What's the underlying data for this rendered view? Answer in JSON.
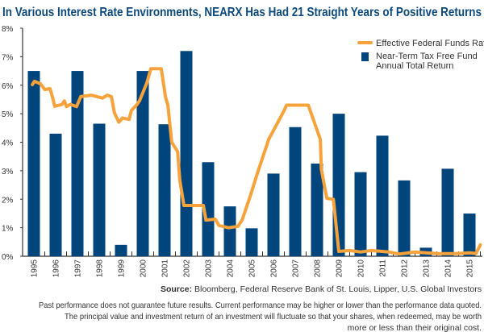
{
  "title": "In Various Interest Rate Environments, NEARX Has Had 21 Straight Years of Positive Returns",
  "source_label": "Source:",
  "source_text": "Bloomberg, Federal Reserve Bank of St. Louis, Lipper, U.S. Global Investors",
  "disclaimer": [
    "Past performance does not guarantee future results. Current performance may be higher or lower than the performance data quoted.",
    "The principal value and investment return of an investment will fluctuate so that your shares, when redeemed, may be worth",
    "more or less than their original cost."
  ],
  "colors": {
    "title": "#0d4a7c",
    "bar": "#00457c",
    "line": "#f7a23b",
    "text": "#333333"
  },
  "chart_data": {
    "type": "bar+line",
    "title": "In Various Interest Rate Environments, NEARX Has Had 21 Straight Years of Positive Returns",
    "ylim": [
      0,
      8
    ],
    "yticks": [
      "0%",
      "1%",
      "2%",
      "3%",
      "4%",
      "5%",
      "6%",
      "7%",
      "8%"
    ],
    "categories": [
      "1995",
      "1996",
      "1997",
      "1998",
      "1999",
      "2000",
      "2001",
      "2002",
      "2003",
      "2004",
      "2005",
      "2006",
      "2007",
      "2008",
      "2009",
      "2010",
      "2011",
      "2012",
      "2013",
      "2014",
      "2015"
    ],
    "legend_position": "top-right",
    "series": [
      {
        "name": "Near-Term Tax Free Fund Annual Total Return",
        "legend_lines": [
          "Near-Term Tax Free Fund",
          "Annual Total Return"
        ],
        "type": "bar",
        "values": [
          6.5,
          4.3,
          6.5,
          4.65,
          0.4,
          6.5,
          4.63,
          7.2,
          3.3,
          1.75,
          0.98,
          2.9,
          4.53,
          3.25,
          5.0,
          2.95,
          4.23,
          2.66,
          0.3,
          3.07,
          1.5
        ]
      },
      {
        "name": "Effective Federal Funds Rate",
        "type": "line",
        "points": [
          [
            1994.93,
            6.02
          ],
          [
            1995.03,
            6.14
          ],
          [
            1995.3,
            6.05
          ],
          [
            1995.5,
            5.85
          ],
          [
            1995.74,
            5.88
          ],
          [
            1995.85,
            5.6
          ],
          [
            1995.96,
            5.26
          ],
          [
            1996.3,
            5.33
          ],
          [
            1996.4,
            5.45
          ],
          [
            1996.5,
            5.25
          ],
          [
            1996.67,
            5.33
          ],
          [
            1996.96,
            5.25
          ],
          [
            1997.15,
            5.6
          ],
          [
            1997.63,
            5.65
          ],
          [
            1998.15,
            5.55
          ],
          [
            1998.37,
            5.65
          ],
          [
            1998.56,
            5.6
          ],
          [
            1998.7,
            5.03
          ],
          [
            1998.9,
            4.7
          ],
          [
            1999.07,
            4.85
          ],
          [
            1999.37,
            4.8
          ],
          [
            1999.48,
            5.12
          ],
          [
            1999.74,
            5.33
          ],
          [
            1999.85,
            5.45
          ],
          [
            2000.18,
            6.07
          ],
          [
            2000.37,
            6.58
          ],
          [
            2000.85,
            6.58
          ],
          [
            2001.04,
            5.6
          ],
          [
            2001.15,
            5.3
          ],
          [
            2001.33,
            4.0
          ],
          [
            2001.6,
            3.67
          ],
          [
            2001.7,
            2.67
          ],
          [
            2001.89,
            1.78
          ],
          [
            2002.78,
            1.78
          ],
          [
            2002.9,
            1.27
          ],
          [
            2003.33,
            1.3
          ],
          [
            2003.5,
            1.08
          ],
          [
            2003.93,
            1.0
          ],
          [
            2004.37,
            1.05
          ],
          [
            2004.56,
            1.27
          ],
          [
            2004.93,
            2.1
          ],
          [
            2005.3,
            3.0
          ],
          [
            2005.78,
            4.1
          ],
          [
            2006.48,
            5.1
          ],
          [
            2006.6,
            5.3
          ],
          [
            2007.6,
            5.3
          ],
          [
            2008.15,
            4.1
          ],
          [
            2008.2,
            3.05
          ],
          [
            2008.45,
            2.03
          ],
          [
            2008.75,
            2.0
          ],
          [
            2009.0,
            0.17
          ],
          [
            2009.5,
            0.2
          ],
          [
            2010.0,
            0.15
          ],
          [
            2010.5,
            0.2
          ],
          [
            2011.3,
            0.15
          ],
          [
            2011.8,
            0.08
          ],
          [
            2012.5,
            0.15
          ],
          [
            2013.0,
            0.12
          ],
          [
            2013.6,
            0.09
          ],
          [
            2014.3,
            0.09
          ],
          [
            2015.0,
            0.12
          ],
          [
            2015.3,
            0.1
          ],
          [
            2015.5,
            0.4
          ]
        ]
      }
    ]
  }
}
